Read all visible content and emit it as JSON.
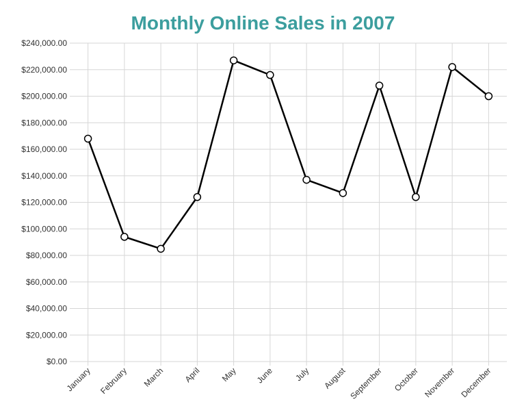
{
  "chart_data": {
    "type": "line",
    "title": "Monthly Online Sales in 2007",
    "xlabel": "",
    "ylabel": "",
    "categories": [
      "January",
      "February",
      "March",
      "April",
      "May",
      "June",
      "July",
      "August",
      "September",
      "October",
      "November",
      "December"
    ],
    "series": [
      {
        "values": [
          168000,
          94000,
          85000,
          124000,
          227000,
          216000,
          137000,
          127000,
          208000,
          124000,
          222000,
          200000
        ]
      }
    ],
    "ylim": [
      0,
      240000
    ],
    "ytick_step": 20000,
    "ytick_format": "currency-2dp",
    "grid": true,
    "legend": "none",
    "colors": {
      "title": "#3c9e9e",
      "line": "#000000",
      "marker_fill": "#ffffff",
      "grid": "#d6d6d6"
    }
  }
}
